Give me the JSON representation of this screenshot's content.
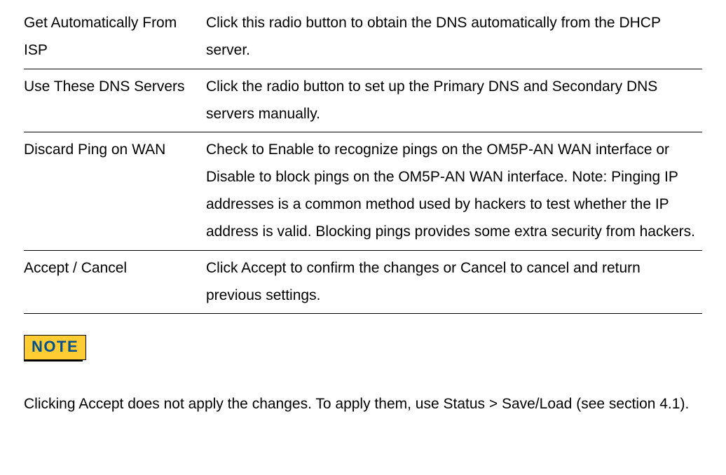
{
  "rows": [
    {
      "label": "Get Automatically From ISP",
      "desc": "Click this radio button to obtain the DNS automatically from the DHCP server."
    },
    {
      "label": "Use These DNS Servers",
      "desc": "Click the radio button to set up the Primary DNS and Secondary DNS servers manually."
    },
    {
      "label": "Discard Ping on WAN",
      "desc": "Check to Enable to recognize pings on the OM5P-AN WAN interface or Disable to block pings on the OM5P-AN WAN interface. Note: Pinging IP addresses is a common method used by hackers to\ntest whether the IP address is valid. Blocking pings provides some extra security from hackers."
    },
    {
      "label": "Accept / Cancel",
      "desc": "Click Accept to confirm the changes or Cancel to cancel and return previous settings."
    }
  ],
  "note_label": "NOTE",
  "note_text": "Clicking Accept does not apply the changes. To apply them, use Status > Save/Load (see section 4.1)."
}
